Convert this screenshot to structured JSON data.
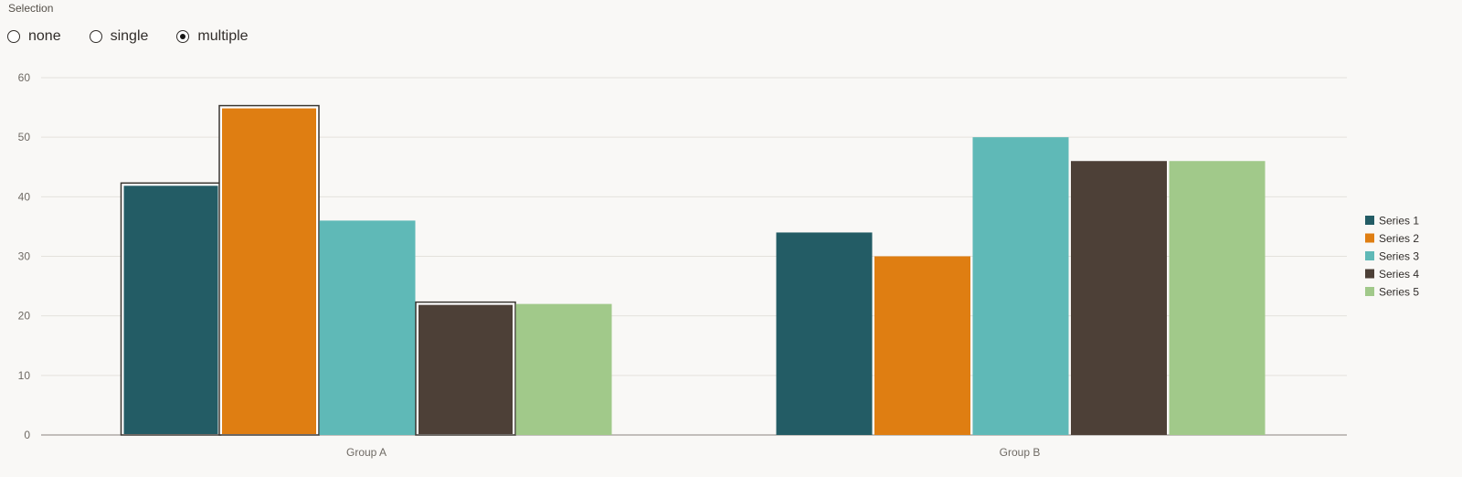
{
  "selection": {
    "label": "Selection",
    "options": [
      {
        "label": "none",
        "checked": false
      },
      {
        "label": "single",
        "checked": false
      },
      {
        "label": "multiple",
        "checked": true
      }
    ]
  },
  "chart_data": {
    "type": "bar",
    "title": "",
    "xlabel": "",
    "ylabel": "",
    "categories": [
      "Group A",
      "Group B"
    ],
    "ylim": [
      0,
      60
    ],
    "yticks": [
      0,
      10,
      20,
      30,
      40,
      50,
      60
    ],
    "grid": true,
    "legend_position": "right",
    "series": [
      {
        "name": "Series 1",
        "values": [
          42,
          34
        ],
        "color": "#235c65",
        "selected": [
          true,
          false
        ]
      },
      {
        "name": "Series 2",
        "values": [
          55,
          30
        ],
        "color": "#df7e12",
        "selected": [
          true,
          false
        ]
      },
      {
        "name": "Series 3",
        "values": [
          36,
          50
        ],
        "color": "#5fb9b7",
        "selected": [
          false,
          false
        ]
      },
      {
        "name": "Series 4",
        "values": [
          22,
          46
        ],
        "color": "#4d4037",
        "selected": [
          true,
          false
        ]
      },
      {
        "name": "Series 5",
        "values": [
          22,
          46
        ],
        "color": "#a1c98a",
        "selected": [
          false,
          false
        ]
      }
    ]
  }
}
